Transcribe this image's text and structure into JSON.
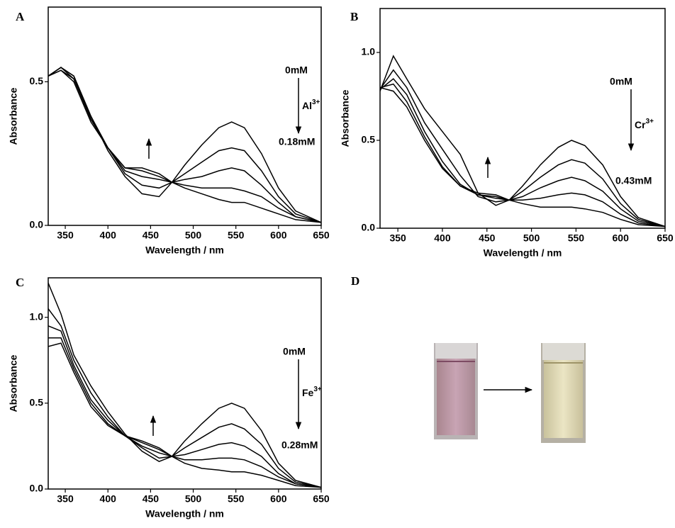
{
  "chart_data": [
    {
      "type": "line",
      "panel": "A",
      "xlabel": "Wavelength / nm",
      "ylabel": "Absorbance",
      "color": "#000000",
      "x": [
        330,
        345,
        360,
        380,
        400,
        420,
        440,
        460,
        475,
        490,
        510,
        530,
        545,
        560,
        580,
        600,
        620,
        650
      ],
      "series": [
        {
          "values": [
            0.52,
            0.55,
            0.52,
            0.38,
            0.26,
            0.17,
            0.11,
            0.1,
            0.15,
            0.21,
            0.28,
            0.34,
            0.36,
            0.34,
            0.25,
            0.13,
            0.05,
            0.01
          ]
        },
        {
          "values": [
            0.52,
            0.55,
            0.52,
            0.38,
            0.27,
            0.18,
            0.14,
            0.13,
            0.15,
            0.18,
            0.22,
            0.26,
            0.27,
            0.26,
            0.19,
            0.1,
            0.04,
            0.01
          ]
        },
        {
          "values": [
            0.52,
            0.55,
            0.51,
            0.37,
            0.27,
            0.19,
            0.17,
            0.16,
            0.15,
            0.16,
            0.17,
            0.19,
            0.2,
            0.19,
            0.14,
            0.08,
            0.03,
            0.01
          ]
        },
        {
          "values": [
            0.52,
            0.54,
            0.51,
            0.37,
            0.27,
            0.2,
            0.19,
            0.17,
            0.15,
            0.14,
            0.13,
            0.13,
            0.13,
            0.12,
            0.1,
            0.06,
            0.03,
            0.01
          ]
        },
        {
          "values": [
            0.52,
            0.54,
            0.5,
            0.36,
            0.27,
            0.2,
            0.2,
            0.18,
            0.15,
            0.13,
            0.11,
            0.09,
            0.08,
            0.08,
            0.06,
            0.04,
            0.02,
            0.01
          ]
        }
      ],
      "xlim": [
        330,
        650
      ],
      "xticks": [
        350,
        400,
        450,
        500,
        550,
        600,
        650
      ],
      "ylim": [
        0,
        0.76
      ],
      "yticks": [
        {
          "value": 0,
          "label": "0.0"
        },
        0.5
      ],
      "annotations": {
        "start": "0mM",
        "ion": "Al",
        "charge": "3+",
        "end": "0.18mM"
      }
    },
    {
      "type": "line",
      "panel": "B",
      "xlabel": "Wavelength / nm",
      "ylabel": "Absorbance",
      "color": "#000000",
      "x": [
        330,
        345,
        360,
        380,
        400,
        420,
        440,
        460,
        475,
        490,
        510,
        530,
        545,
        560,
        580,
        600,
        620,
        650
      ],
      "series": [
        {
          "values": [
            0.78,
            0.98,
            0.85,
            0.68,
            0.55,
            0.42,
            0.2,
            0.13,
            0.16,
            0.24,
            0.36,
            0.46,
            0.5,
            0.47,
            0.36,
            0.18,
            0.06,
            0.01
          ]
        },
        {
          "values": [
            0.79,
            0.9,
            0.8,
            0.6,
            0.45,
            0.3,
            0.18,
            0.15,
            0.16,
            0.21,
            0.29,
            0.36,
            0.39,
            0.37,
            0.28,
            0.14,
            0.05,
            0.01
          ]
        },
        {
          "values": [
            0.79,
            0.85,
            0.76,
            0.55,
            0.38,
            0.25,
            0.19,
            0.17,
            0.16,
            0.18,
            0.23,
            0.27,
            0.29,
            0.27,
            0.21,
            0.11,
            0.04,
            0.01
          ]
        },
        {
          "values": [
            0.8,
            0.82,
            0.72,
            0.52,
            0.35,
            0.24,
            0.19,
            0.18,
            0.16,
            0.16,
            0.17,
            0.19,
            0.2,
            0.19,
            0.15,
            0.08,
            0.03,
            0.01
          ]
        },
        {
          "values": [
            0.8,
            0.78,
            0.69,
            0.5,
            0.34,
            0.24,
            0.2,
            0.19,
            0.16,
            0.14,
            0.12,
            0.12,
            0.12,
            0.11,
            0.09,
            0.05,
            0.02,
            0.01
          ]
        }
      ],
      "xlim": [
        330,
        650
      ],
      "xticks": [
        350,
        400,
        450,
        500,
        550,
        600,
        650
      ],
      "ylim": [
        0,
        1.25
      ],
      "yticks": [
        {
          "value": 0,
          "label": "0.0"
        },
        0.5,
        {
          "value": 1,
          "label": "1.0"
        }
      ],
      "annotations": {
        "start": "0mM",
        "ion": "Cr",
        "charge": "3+",
        "end": "0.43mM"
      }
    },
    {
      "type": "line",
      "panel": "C",
      "xlabel": "Wavelength / nm",
      "ylabel": "Absorbance",
      "color": "#000000",
      "x": [
        330,
        345,
        360,
        380,
        400,
        420,
        440,
        460,
        475,
        490,
        510,
        530,
        545,
        560,
        580,
        600,
        620,
        650
      ],
      "series": [
        {
          "values": [
            1.2,
            1.02,
            0.78,
            0.6,
            0.45,
            0.32,
            0.22,
            0.16,
            0.19,
            0.28,
            0.38,
            0.47,
            0.5,
            0.47,
            0.34,
            0.15,
            0.05,
            0.01
          ]
        },
        {
          "values": [
            1.05,
            0.95,
            0.75,
            0.56,
            0.42,
            0.31,
            0.24,
            0.18,
            0.19,
            0.24,
            0.3,
            0.36,
            0.38,
            0.35,
            0.26,
            0.12,
            0.04,
            0.01
          ]
        },
        {
          "values": [
            0.95,
            0.92,
            0.72,
            0.52,
            0.4,
            0.31,
            0.25,
            0.21,
            0.19,
            0.2,
            0.23,
            0.26,
            0.27,
            0.25,
            0.19,
            0.09,
            0.03,
            0.01
          ]
        },
        {
          "values": [
            0.88,
            0.88,
            0.7,
            0.5,
            0.38,
            0.31,
            0.27,
            0.23,
            0.19,
            0.17,
            0.17,
            0.18,
            0.18,
            0.17,
            0.13,
            0.07,
            0.03,
            0.01
          ]
        },
        {
          "values": [
            0.83,
            0.85,
            0.68,
            0.48,
            0.37,
            0.31,
            0.28,
            0.24,
            0.19,
            0.15,
            0.12,
            0.11,
            0.1,
            0.1,
            0.08,
            0.05,
            0.02,
            0.01
          ]
        }
      ],
      "xlim": [
        330,
        650
      ],
      "xticks": [
        350,
        400,
        450,
        500,
        550,
        600,
        650
      ],
      "ylim": [
        0,
        1.23
      ],
      "yticks": [
        {
          "value": 0,
          "label": "0.0"
        },
        0.5,
        {
          "value": 1,
          "label": "1.0"
        }
      ],
      "annotations": {
        "start": "0mM",
        "ion": "Fe",
        "charge": "3+",
        "end": "0.28mM"
      }
    }
  ],
  "panel_d": {
    "label": "D"
  }
}
